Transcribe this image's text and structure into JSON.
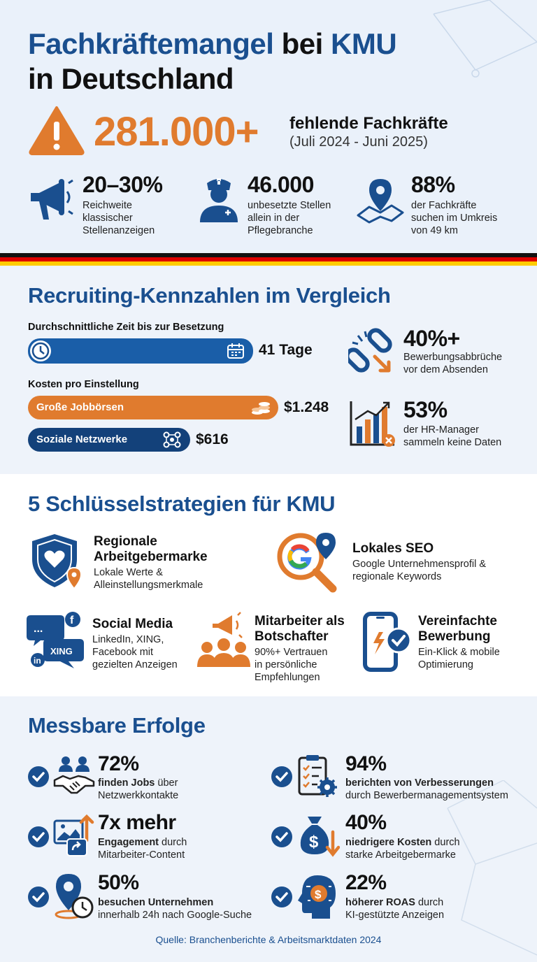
{
  "header": {
    "title_part1": "Fachkräftemangel",
    "title_part2": "bei",
    "title_part3": "KMU",
    "title_line2": "in Deutschland",
    "headline_number": "281.000+",
    "headline_label": "fehlende Fachkräfte",
    "headline_period": "(Juli 2024 - Juni 2025)",
    "stats": [
      {
        "number": "20–30%",
        "text": [
          "Reichweite",
          "klassischer",
          "Stellenanzeigen"
        ],
        "icon": "megaphone-icon"
      },
      {
        "number": "46.000",
        "text": [
          "unbesetzte Stellen",
          "allein in der",
          "Pflegebranche"
        ],
        "icon": "nurse-icon"
      },
      {
        "number": "88%",
        "text": [
          "der Fachkräfte",
          "suchen im Umkreis",
          "von 49 km"
        ],
        "icon": "map-pin-icon"
      }
    ]
  },
  "recruiting": {
    "heading": "Recruiting-Kennzahlen im Vergleich",
    "time_label": "Durchschnittliche Zeit bis zur Besetzung",
    "time_value": "41 Tage",
    "cost_label": "Kosten pro Einstellung",
    "cost_bars": [
      {
        "label": "Große Jobbörsen",
        "value": "$1.248"
      },
      {
        "label": "Soziale Netzwerke",
        "value": "$616"
      }
    ],
    "side_stats": [
      {
        "number": "40%+",
        "text": [
          "Bewerbungsabbrüche",
          "vor dem Absenden"
        ],
        "icon": "broken-chain-icon"
      },
      {
        "number": "53%",
        "text": [
          "der HR-Manager",
          "sammeln keine Daten"
        ],
        "icon": "bar-chart-icon"
      }
    ]
  },
  "strategies": {
    "heading": "5 Schlüsselstrategien für KMU",
    "items": [
      {
        "title": [
          "Regionale",
          "Arbeitgebermarke"
        ],
        "text": [
          "Lokale Werte &",
          "Alleinstellungsmerkmale"
        ],
        "icon": "shield-heart-icon"
      },
      {
        "title": [
          "Lokales SEO"
        ],
        "text": [
          "Google Unternehmensprofil &",
          "regionale Keywords"
        ],
        "icon": "google-search-icon"
      },
      {
        "title": [
          "Social Media"
        ],
        "text": [
          "LinkedIn, XING,",
          "Facebook mit",
          "gezielten Anzeigen"
        ],
        "icon": "social-bubbles-icon",
        "badges": [
          "in",
          "XING",
          "f",
          "..."
        ]
      },
      {
        "title": [
          "Mitarbeiter als",
          "Botschafter"
        ],
        "text": [
          "90%+ Vertrauen",
          "in persönliche",
          "Empfehlungen"
        ],
        "icon": "team-megaphone-icon"
      },
      {
        "title": [
          "Vereinfachte",
          "Bewerbung"
        ],
        "text": [
          "Ein-Klick & mobile",
          "Optimierung"
        ],
        "icon": "smartphone-check-icon"
      }
    ]
  },
  "results": {
    "heading": "Messbare Erfolge",
    "items": [
      {
        "number": "72%",
        "bold": "finden Jobs",
        "rest": " über",
        "line2": "Netzwerkkontakte",
        "icon": "handshake-icon"
      },
      {
        "number": "94%",
        "bold": "berichten von Verbesserungen",
        "rest": "",
        "line2": "durch Bewerbermanagementsystem",
        "icon": "clipboard-gear-icon"
      },
      {
        "number": "7x mehr",
        "bold": "Engagement",
        "rest": " durch",
        "line2": "Mitarbeiter-Content",
        "icon": "share-image-icon"
      },
      {
        "number": "40%",
        "bold": "niedrigere Kosten",
        "rest": " durch",
        "line2": "starke Arbeitgebermarke",
        "icon": "money-bag-icon"
      },
      {
        "number": "50%",
        "bold": "besuchen Unternehmen",
        "rest": "",
        "line2": "innerhalb 24h nach Google-Suche",
        "icon": "pin-clock-icon"
      },
      {
        "number": "22%",
        "bold": "höherer ROAS",
        "rest": " durch",
        "line2": "KI-gestützte Anzeigen",
        "icon": "ai-head-icon"
      }
    ],
    "source": "Quelle: Branchenberichte & Arbeitsmarktdaten 2024"
  },
  "colors": {
    "navy": "#1a4f8f",
    "orange": "#e07b2e",
    "flag_black": "#111111",
    "flag_red": "#dd0000",
    "flag_gold": "#ffcc00"
  }
}
